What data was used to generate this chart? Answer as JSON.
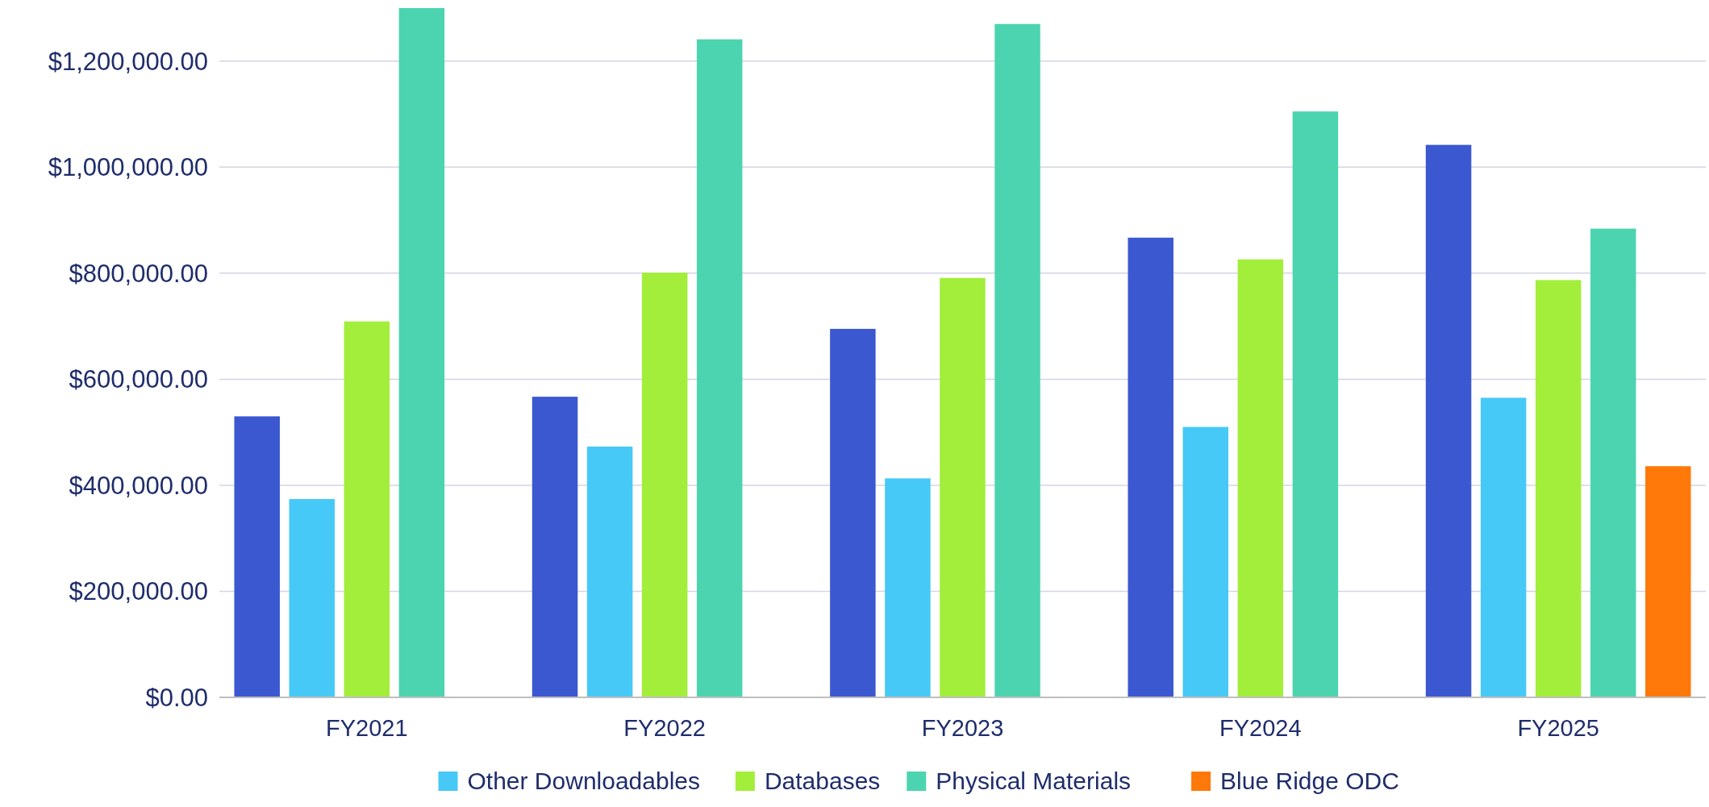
{
  "chart_data": {
    "type": "bar",
    "categories": [
      "FY2021",
      "FY2022",
      "FY2023",
      "FY2024",
      "FY2025"
    ],
    "series": [
      {
        "color": "#3b58d1",
        "values": [
          530000,
          567000,
          695000,
          867000,
          1042000
        ]
      },
      {
        "name": "Other Downloadables",
        "color": "#46c9f6",
        "values": [
          374000,
          473000,
          413000,
          510000,
          565000
        ]
      },
      {
        "name": "Databases",
        "color": "#a2ee3b",
        "values": [
          709000,
          801000,
          791000,
          826000,
          787000
        ]
      },
      {
        "name": "Physical Materials",
        "color": "#4cd4b0",
        "values": [
          1300000,
          1241000,
          1270000,
          1105000,
          884000
        ]
      },
      {
        "name": "Blue Ridge ODC",
        "color": "#ff780a",
        "values": [
          null,
          null,
          null,
          null,
          436000
        ]
      }
    ],
    "ylim": [
      0,
      1300000
    ],
    "yticks": [
      {
        "value": 0,
        "label": "$0.00"
      },
      {
        "value": 200000,
        "label": "$200,000.00"
      },
      {
        "value": 400000,
        "label": "$400,000.00"
      },
      {
        "value": 600000,
        "label": "$600,000.00"
      },
      {
        "value": 800000,
        "label": "$800,000.00"
      },
      {
        "value": 1000000,
        "label": "$1,000,000.00"
      },
      {
        "value": 1200000,
        "label": "$1,200,000.00"
      }
    ],
    "grid": "y",
    "legend": "bottom"
  }
}
